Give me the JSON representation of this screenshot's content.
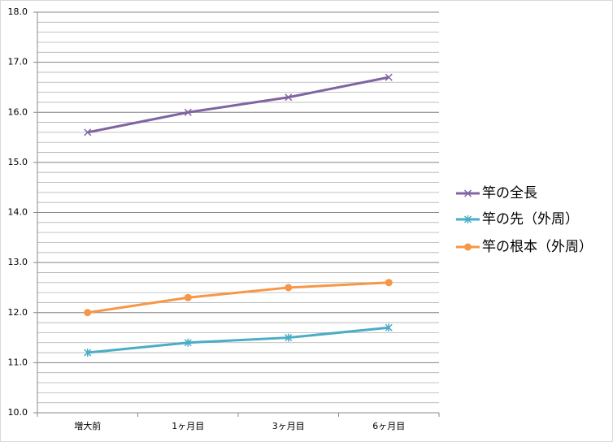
{
  "chart_data": {
    "type": "line",
    "categories": [
      "増大前",
      "1ヶ月目",
      "3ヶ月目",
      "6ヶ月目"
    ],
    "series": [
      {
        "name": "竿の全長",
        "color": "#8064a2",
        "marker": "x",
        "values": [
          15.6,
          16.0,
          16.3,
          16.7
        ]
      },
      {
        "name": "竿の先（外周）",
        "color": "#4bacc6",
        "marker": "asterisk",
        "values": [
          11.2,
          11.4,
          11.5,
          11.7
        ]
      },
      {
        "name": "竿の根本（外周）",
        "color": "#f79646",
        "marker": "circle",
        "values": [
          12.0,
          12.3,
          12.5,
          12.6
        ]
      }
    ],
    "ylim": [
      10,
      18
    ],
    "yticks": [
      {
        "value": 10,
        "label": "10.0"
      },
      {
        "value": 11,
        "label": "11.0"
      },
      {
        "value": 12,
        "label": "12.0"
      },
      {
        "value": 13,
        "label": "13.0"
      },
      {
        "value": 14,
        "label": "14.0"
      },
      {
        "value": 15,
        "label": "15.0"
      },
      {
        "value": 16,
        "label": "16.0"
      },
      {
        "value": 17,
        "label": "17.0"
      },
      {
        "value": 18,
        "label": "18.0"
      }
    ],
    "minor_grid_step": 0.2,
    "grid": true,
    "legend": "right"
  }
}
